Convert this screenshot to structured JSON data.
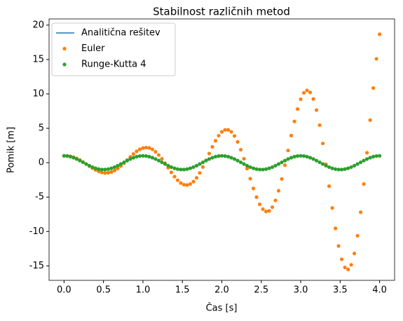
{
  "chart_data": {
    "type": "line",
    "title": "Stabilnost različnih metod",
    "xlabel": "Čas [s]",
    "ylabel": "Pomik [m]",
    "x": [
      0,
      0.04,
      0.08,
      0.12,
      0.16,
      0.2,
      0.24,
      0.28,
      0.32,
      0.36,
      0.4,
      0.44,
      0.48,
      0.52,
      0.56,
      0.6,
      0.64,
      0.68,
      0.72,
      0.76,
      0.8,
      0.84,
      0.88,
      0.92,
      0.96,
      1,
      1.04,
      1.08,
      1.12,
      1.16,
      1.2,
      1.24,
      1.28,
      1.32,
      1.36,
      1.4,
      1.44,
      1.48,
      1.52,
      1.56,
      1.6,
      1.64,
      1.68,
      1.72,
      1.76,
      1.8,
      1.84,
      1.88,
      1.92,
      1.96,
      2,
      2.04,
      2.08,
      2.12,
      2.16,
      2.2,
      2.24,
      2.28,
      2.32,
      2.36,
      2.4,
      2.44,
      2.48,
      2.52,
      2.56,
      2.6,
      2.64,
      2.68,
      2.72,
      2.76,
      2.8,
      2.84,
      2.88,
      2.92,
      2.96,
      3,
      3.04,
      3.08,
      3.12,
      3.16,
      3.2,
      3.24,
      3.28,
      3.32,
      3.36,
      3.4,
      3.44,
      3.48,
      3.52,
      3.56,
      3.6,
      3.64,
      3.68,
      3.72,
      3.76,
      3.8,
      3.84,
      3.88,
      3.92,
      3.96,
      4
    ],
    "series": [
      {
        "name": "Analitična rešitev",
        "color": "#1f77b4",
        "style": "line",
        "values": [
          1,
          0.97,
          0.88,
          0.73,
          0.54,
          0.31,
          0.06,
          -0.19,
          -0.43,
          -0.64,
          -0.81,
          -0.93,
          -0.99,
          -0.99,
          -0.93,
          -0.81,
          -0.64,
          -0.43,
          -0.19,
          0.06,
          0.31,
          0.54,
          0.73,
          0.88,
          0.97,
          1,
          0.97,
          0.88,
          0.73,
          0.54,
          0.31,
          0.06,
          -0.19,
          -0.43,
          -0.64,
          -0.81,
          -0.93,
          -0.99,
          -0.99,
          -0.93,
          -0.81,
          -0.64,
          -0.43,
          -0.19,
          0.06,
          0.31,
          0.54,
          0.73,
          0.88,
          0.97,
          1,
          0.97,
          0.88,
          0.73,
          0.54,
          0.31,
          0.06,
          -0.19,
          -0.43,
          -0.64,
          -0.81,
          -0.93,
          -0.99,
          -0.99,
          -0.93,
          -0.81,
          -0.64,
          -0.43,
          -0.19,
          0.06,
          0.31,
          0.54,
          0.73,
          0.88,
          0.97,
          1,
          0.97,
          0.88,
          0.73,
          0.54,
          0.31,
          0.06,
          -0.19,
          -0.43,
          -0.64,
          -0.81,
          -0.93,
          -0.99,
          -0.99,
          -0.93,
          -0.81,
          -0.64,
          -0.43,
          -0.19,
          0.06,
          0.31,
          0.54,
          0.73,
          0.88,
          0.97,
          1
        ]
      },
      {
        "name": "Euler",
        "color": "#ff7f0e",
        "style": "marker",
        "values": [
          1,
          1,
          0.94,
          0.81,
          0.63,
          0.39,
          0.11,
          -0.19,
          -0.5,
          -0.79,
          -1.06,
          -1.27,
          -1.42,
          -1.49,
          -1.46,
          -1.35,
          -1.14,
          -0.85,
          -0.48,
          -0.06,
          0.39,
          0.84,
          1.27,
          1.65,
          1.94,
          2.13,
          2.2,
          2.14,
          1.93,
          1.59,
          1.13,
          0.57,
          -0.07,
          -0.74,
          -1.4,
          -2.02,
          -2.55,
          -2.95,
          -3.2,
          -3.25,
          -3.1,
          -2.75,
          -2.2,
          -1.48,
          -0.62,
          0.34,
          1.33,
          2.31,
          3.19,
          3.93,
          4.48,
          4.77,
          4.78,
          4.49,
          3.89,
          3.02,
          1.89,
          0.58,
          -0.85,
          -2.32,
          -3.74,
          -5,
          -6.05,
          -6.75,
          -7.09,
          -7,
          -6.46,
          -5.48,
          -4.08,
          -2.36,
          -0.36,
          1.78,
          3.94,
          6,
          7.8,
          9.23,
          10.16,
          10.51,
          10.21,
          9.26,
          7.65,
          5.46,
          2.8,
          -0.22,
          -3.41,
          -6.58,
          -9.55,
          -12.1,
          -14.04,
          -15.22,
          -15.51,
          -14.84,
          -13.19,
          -10.61,
          -7.2,
          -3.1,
          1.45,
          6.19,
          10.85,
          15.1,
          18.67
        ]
      },
      {
        "name": "Runge-Kutta 4",
        "color": "#2ca02c",
        "style": "marker",
        "values": [
          1,
          0.97,
          0.88,
          0.73,
          0.54,
          0.31,
          0.06,
          -0.19,
          -0.43,
          -0.64,
          -0.81,
          -0.93,
          -0.99,
          -0.99,
          -0.93,
          -0.81,
          -0.64,
          -0.43,
          -0.19,
          0.06,
          0.31,
          0.54,
          0.73,
          0.88,
          0.97,
          1,
          0.97,
          0.88,
          0.73,
          0.54,
          0.31,
          0.06,
          -0.19,
          -0.43,
          -0.64,
          -0.81,
          -0.93,
          -0.99,
          -0.99,
          -0.93,
          -0.81,
          -0.64,
          -0.43,
          -0.19,
          0.06,
          0.31,
          0.54,
          0.73,
          0.88,
          0.97,
          1,
          0.97,
          0.88,
          0.73,
          0.54,
          0.31,
          0.06,
          -0.19,
          -0.43,
          -0.64,
          -0.81,
          -0.93,
          -0.99,
          -0.99,
          -0.93,
          -0.81,
          -0.64,
          -0.43,
          -0.19,
          0.06,
          0.31,
          0.54,
          0.73,
          0.88,
          0.97,
          1,
          0.97,
          0.88,
          0.73,
          0.54,
          0.31,
          0.06,
          -0.19,
          -0.43,
          -0.64,
          -0.81,
          -0.93,
          -0.99,
          -0.99,
          -0.93,
          -0.81,
          -0.64,
          -0.43,
          -0.19,
          0.06,
          0.31,
          0.54,
          0.73,
          0.88,
          0.97,
          1
        ]
      }
    ],
    "xlim": [
      -0.19,
      4.19
    ],
    "ylim": [
      -17.1,
      20.9
    ],
    "xticks": [
      {
        "value": 0,
        "label": "0.0"
      },
      {
        "value": 0.5,
        "label": "0.5"
      },
      {
        "value": 1,
        "label": "1.0"
      },
      {
        "value": 1.5,
        "label": "1.5"
      },
      {
        "value": 2,
        "label": "2.0"
      },
      {
        "value": 2.5,
        "label": "2.5"
      },
      {
        "value": 3,
        "label": "3.0"
      },
      {
        "value": 3.5,
        "label": "3.5"
      },
      {
        "value": 4,
        "label": "4.0"
      }
    ],
    "yticks": [
      -15,
      -10,
      -5,
      0,
      5,
      10,
      15,
      20
    ],
    "grid": false,
    "legend": "upper left"
  }
}
